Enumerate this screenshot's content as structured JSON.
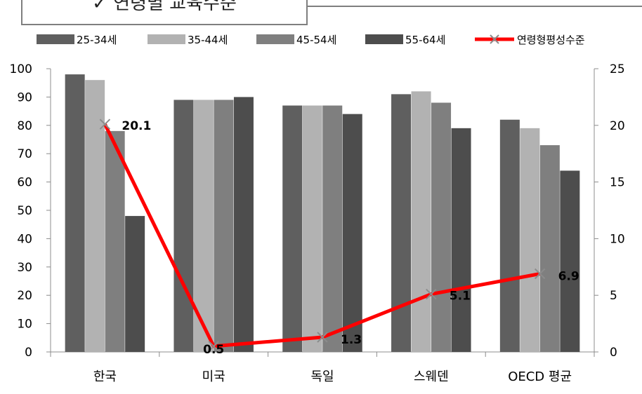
{
  "title": "✓   연령별 교육수준",
  "chart_data": {
    "type": "bar",
    "categories": [
      "한국",
      "미국",
      "독일",
      "스웨덴",
      "OECD 평균"
    ],
    "series": [
      {
        "name": "25-34세",
        "values": [
          98,
          89,
          87,
          91,
          82
        ],
        "color": "#5f5f5f"
      },
      {
        "name": "35-44세",
        "values": [
          96,
          89,
          87,
          92,
          79
        ],
        "color": "#b2b2b2"
      },
      {
        "name": "45-54세",
        "values": [
          78,
          89,
          87,
          88,
          73
        ],
        "color": "#7f7f7f"
      },
      {
        "name": "55-64세",
        "values": [
          48,
          90,
          84,
          79,
          64
        ],
        "color": "#4d4d4d"
      }
    ],
    "line_series": {
      "name": "연령형평성수준",
      "values": [
        20.1,
        0.5,
        1.3,
        5.1,
        6.9
      ],
      "labels": [
        "20.1",
        "0.5",
        "1.3",
        "5.1",
        "6.9"
      ],
      "color": "#ff0000",
      "marker_color": "#8c8c8c",
      "axis": "secondary"
    },
    "y_left": {
      "min": 0,
      "max": 100,
      "ticks": [
        "0",
        "10",
        "20",
        "30",
        "40",
        "50",
        "60",
        "70",
        "80",
        "90",
        "100"
      ]
    },
    "y_right": {
      "min": 0,
      "max": 25,
      "ticks": [
        "0",
        "5",
        "10",
        "15",
        "20",
        "25"
      ]
    },
    "legend_position": "top",
    "grid": false
  }
}
